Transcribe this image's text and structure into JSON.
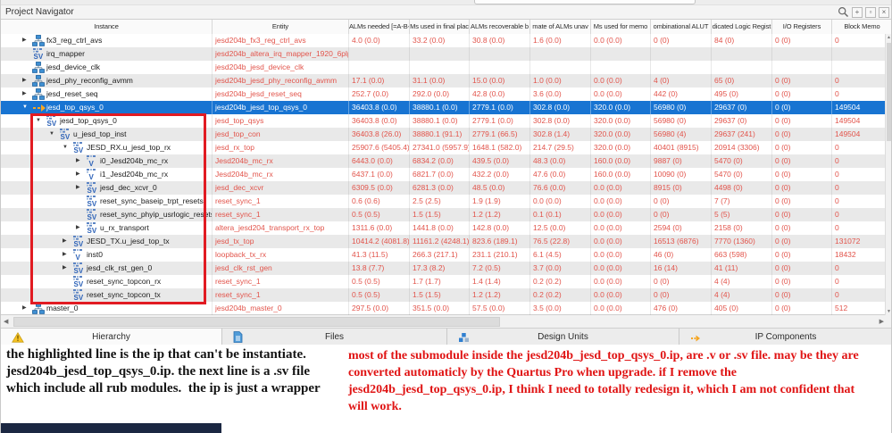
{
  "panel": {
    "title": "Project Navigator"
  },
  "titlebar": {
    "icons": [
      "search-icon",
      "pin-icon",
      "float-icon",
      "close-icon"
    ],
    "pin_glyph": "+",
    "float_glyph": "▫",
    "close_glyph": "×"
  },
  "colors": {
    "accent_selected_row": "#1874d2",
    "value_text_red": "#e2544b",
    "annotation_red": "#e01414",
    "annotation_black": "#141414",
    "highlight_box_red": "#e11b22",
    "taskbar_navy": "#1b2742"
  },
  "icons": {
    "sv_label": "SV",
    "v_label": "V"
  },
  "table": {
    "columns": [
      "Instance",
      "Entity",
      "ALMs needed [=A-B+C]",
      "Ms used in final plac",
      "ALMs recoverable b",
      "mate of ALMs unav",
      "Ms used for memo",
      "ombinational ALUT",
      "dicated Logic Regist",
      "I/O Registers",
      "Block Memo"
    ],
    "rows": [
      {
        "instance": "fx3_reg_ctrl_avs",
        "entity": "jesd204b_fx3_reg_ctrl_avs",
        "level": 0,
        "expand": "closed",
        "icon": "qsys",
        "selected": false,
        "values": [
          "4.0 (0.0)",
          "33.2 (0.0)",
          "30.8 (0.0)",
          "1.6 (0.0)",
          "0.0 (0.0)",
          "0 (0)",
          "84 (0)",
          "0 (0)",
          "0"
        ]
      },
      {
        "instance": "irq_mapper",
        "entity": "jesd204b_altera_irq_mapper_1920_6plp…",
        "level": 0,
        "expand": "none",
        "icon": "sv",
        "selected": false,
        "values": [
          "",
          "",
          "",
          "",
          "",
          "",
          "",
          "",
          ""
        ]
      },
      {
        "instance": "jesd_device_clk",
        "entity": "jesd204b_jesd_device_clk",
        "level": 0,
        "expand": "none",
        "icon": "qsys",
        "selected": false,
        "values": [
          "",
          "",
          "",
          "",
          "",
          "",
          "",
          "",
          ""
        ]
      },
      {
        "instance": "jesd_phy_reconfig_avmm",
        "entity": "jesd204b_jesd_phy_reconfig_avmm",
        "level": 0,
        "expand": "closed",
        "icon": "qsys",
        "selected": false,
        "values": [
          "17.1 (0.0)",
          "31.1 (0.0)",
          "15.0 (0.0)",
          "1.0 (0.0)",
          "0.0 (0.0)",
          "4 (0)",
          "65 (0)",
          "0 (0)",
          "0"
        ]
      },
      {
        "instance": "jesd_reset_seq",
        "entity": "jesd204b_jesd_reset_seq",
        "level": 0,
        "expand": "closed",
        "icon": "qsys",
        "selected": false,
        "values": [
          "252.7 (0.0)",
          "292.0 (0.0)",
          "42.8 (0.0)",
          "3.6 (0.0)",
          "0.0 (0.0)",
          "442 (0)",
          "495 (0)",
          "0 (0)",
          "0"
        ]
      },
      {
        "instance": "jesd_top_qsys_0",
        "entity": "jesd204b_jesd_top_qsys_0",
        "level": 0,
        "expand": "open",
        "icon": "ip",
        "selected": true,
        "values": [
          "36403.8 (0.0)",
          "38880.1 (0.0)",
          "2779.1 (0.0)",
          "302.8 (0.0)",
          "320.0 (0.0)",
          "56980 (0)",
          "29637 (0)",
          "0 (0)",
          "149504"
        ]
      },
      {
        "instance": "jesd_top_qsys_0",
        "entity": "jesd_top_qsys",
        "level": 1,
        "expand": "open",
        "icon": "sv",
        "selected": false,
        "values": [
          "36403.8 (0.0)",
          "38880.1 (0.0)",
          "2779.1 (0.0)",
          "302.8 (0.0)",
          "320.0 (0.0)",
          "56980 (0)",
          "29637 (0)",
          "0 (0)",
          "149504"
        ]
      },
      {
        "instance": "u_jesd_top_inst",
        "entity": "jesd_top_con",
        "level": 2,
        "expand": "open",
        "icon": "sv",
        "selected": false,
        "values": [
          "36403.8 (26.0)",
          "38880.1 (91.1)",
          "2779.1 (66.5)",
          "302.8 (1.4)",
          "320.0 (0.0)",
          "56980 (4)",
          "29637 (241)",
          "0 (0)",
          "149504"
        ]
      },
      {
        "instance": "JESD_RX.u_jesd_top_rx",
        "entity": "jesd_rx_top",
        "level": 3,
        "expand": "open",
        "icon": "sv",
        "selected": false,
        "values": [
          "25907.6 (5405.4)",
          "27341.0 (5957.9)",
          "1648.1 (582.0)",
          "214.7 (29.5)",
          "320.0 (0.0)",
          "40401 (8915)",
          "20914 (3306)",
          "0 (0)",
          "0"
        ]
      },
      {
        "instance": "i0_Jesd204b_mc_rx",
        "entity": "Jesd204b_mc_rx",
        "level": 4,
        "expand": "closed",
        "icon": "v",
        "selected": false,
        "values": [
          "6443.0 (0.0)",
          "6834.2 (0.0)",
          "439.5 (0.0)",
          "48.3 (0.0)",
          "160.0 (0.0)",
          "9887 (0)",
          "5470 (0)",
          "0 (0)",
          "0"
        ]
      },
      {
        "instance": "i1_Jesd204b_mc_rx",
        "entity": "Jesd204b_mc_rx",
        "level": 4,
        "expand": "closed",
        "icon": "v",
        "selected": false,
        "values": [
          "6437.1 (0.0)",
          "6821.7 (0.0)",
          "432.2 (0.0)",
          "47.6 (0.0)",
          "160.0 (0.0)",
          "10090 (0)",
          "5470 (0)",
          "0 (0)",
          "0"
        ]
      },
      {
        "instance": "jesd_dec_xcvr_0",
        "entity": "jesd_dec_xcvr",
        "level": 4,
        "expand": "closed",
        "icon": "sv",
        "selected": false,
        "values": [
          "6309.5 (0.0)",
          "6281.3 (0.0)",
          "48.5 (0.0)",
          "76.6 (0.0)",
          "0.0 (0.0)",
          "8915 (0)",
          "4498 (0)",
          "0 (0)",
          "0"
        ]
      },
      {
        "instance": "reset_sync_baseip_trpt_resets",
        "entity": "reset_sync_1",
        "level": 4,
        "expand": "none",
        "icon": "sv",
        "selected": false,
        "values": [
          "0.6 (0.6)",
          "2.5 (2.5)",
          "1.9 (1.9)",
          "0.0 (0.0)",
          "0.0 (0.0)",
          "0 (0)",
          "7 (7)",
          "0 (0)",
          "0"
        ]
      },
      {
        "instance": "reset_sync_phyip_usrlogic_resets",
        "entity": "reset_sync_1",
        "level": 4,
        "expand": "none",
        "icon": "sv",
        "selected": false,
        "values": [
          "0.5 (0.5)",
          "1.5 (1.5)",
          "1.2 (1.2)",
          "0.1 (0.1)",
          "0.0 (0.0)",
          "0 (0)",
          "5 (5)",
          "0 (0)",
          "0"
        ]
      },
      {
        "instance": "u_rx_transport",
        "entity": "altera_jesd204_transport_rx_top",
        "level": 4,
        "expand": "closed",
        "icon": "sv",
        "selected": false,
        "values": [
          "1311.6 (0.0)",
          "1441.8 (0.0)",
          "142.8 (0.0)",
          "12.5 (0.0)",
          "0.0 (0.0)",
          "2594 (0)",
          "2158 (0)",
          "0 (0)",
          "0"
        ]
      },
      {
        "instance": "JESD_TX.u_jesd_top_tx",
        "entity": "jesd_tx_top",
        "level": 3,
        "expand": "closed",
        "icon": "sv",
        "selected": false,
        "values": [
          "10414.2 (4081.8)",
          "11161.2 (4248.1)",
          "823.6 (189.1)",
          "76.5 (22.8)",
          "0.0 (0.0)",
          "16513 (6876)",
          "7770 (1360)",
          "0 (0)",
          "131072"
        ]
      },
      {
        "instance": "inst0",
        "entity": "loopback_tx_rx",
        "level": 3,
        "expand": "closed",
        "icon": "v",
        "selected": false,
        "values": [
          "41.3 (11.5)",
          "266.3 (217.1)",
          "231.1 (210.1)",
          "6.1 (4.5)",
          "0.0 (0.0)",
          "46 (0)",
          "663 (598)",
          "0 (0)",
          "18432"
        ]
      },
      {
        "instance": "jesd_clk_rst_gen_0",
        "entity": "jesd_clk_rst_gen",
        "level": 3,
        "expand": "closed",
        "icon": "sv",
        "selected": false,
        "values": [
          "13.8 (7.7)",
          "17.3 (8.2)",
          "7.2 (0.5)",
          "3.7 (0.0)",
          "0.0 (0.0)",
          "16 (14)",
          "41 (11)",
          "0 (0)",
          "0"
        ]
      },
      {
        "instance": "reset_sync_topcon_rx",
        "entity": "reset_sync_1",
        "level": 3,
        "expand": "none",
        "icon": "sv",
        "selected": false,
        "values": [
          "0.5 (0.5)",
          "1.7 (1.7)",
          "1.4 (1.4)",
          "0.2 (0.2)",
          "0.0 (0.0)",
          "0 (0)",
          "4 (4)",
          "0 (0)",
          "0"
        ]
      },
      {
        "instance": "reset_sync_topcon_tx",
        "entity": "reset_sync_1",
        "level": 3,
        "expand": "none",
        "icon": "sv",
        "selected": false,
        "values": [
          "0.5 (0.5)",
          "1.5 (1.5)",
          "1.2 (1.2)",
          "0.2 (0.2)",
          "0.0 (0.0)",
          "0 (0)",
          "4 (4)",
          "0 (0)",
          "0"
        ]
      },
      {
        "instance": "master_0",
        "entity": "jesd204b_master_0",
        "level": 0,
        "expand": "closed",
        "icon": "qsys",
        "selected": false,
        "values": [
          "297.5 (0.0)",
          "351.5 (0.0)",
          "57.5 (0.0)",
          "3.5 (0.0)",
          "0.0 (0.0)",
          "476 (0)",
          "405 (0)",
          "0 (0)",
          "512"
        ]
      }
    ]
  },
  "tabs": [
    {
      "label": "Hierarchy",
      "icon": "hierarchy-warning-icon",
      "active": true
    },
    {
      "label": "Files",
      "icon": "file-icon",
      "active": false
    },
    {
      "label": "Design Units",
      "icon": "design-units-icon",
      "active": false
    },
    {
      "label": "IP Components",
      "icon": "ip-components-icon",
      "active": false
    }
  ],
  "annotations": {
    "left": "the highlighted line is the ip that can't be instantiate.\njesd204b_jesd_top_qsys_0.ip. the next line is a .sv file\nwhich include all rub modules.  the ip is just a wrapper",
    "right": "most of the submodule inside the jesd204b_jesd_top_qsys_0.ip, are .v or .sv file. may be they are\nconverted automaticly by the Quartus Pro when upgrade. if I remove the\njesd204b_jesd_top_qsys_0.ip, I think I need to totally redesign it, which I am not confident that\nwill work."
  }
}
